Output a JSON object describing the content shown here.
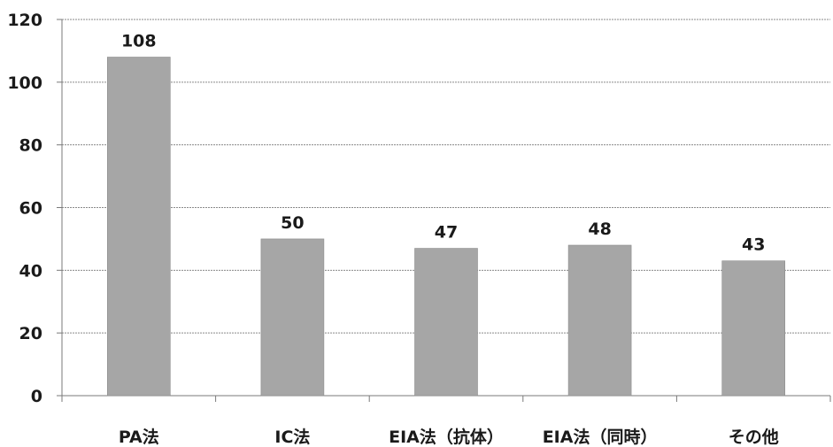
{
  "chart_data": {
    "type": "bar",
    "categories": [
      "PA法",
      "IC法",
      "EIA法（抗体）",
      "EIA法（同時）",
      "その他"
    ],
    "values": [
      108,
      50,
      47,
      48,
      43
    ],
    "data_labels": [
      "108",
      "50",
      "47",
      "48",
      "43"
    ],
    "title": "",
    "xlabel": "",
    "ylabel": "",
    "ylim": [
      0,
      120
    ],
    "yticks": [
      0,
      20,
      40,
      60,
      80,
      100,
      120
    ],
    "grid": true,
    "legend": "none",
    "colors": {
      "bar": "#a6a6a6",
      "bar_edge": "#8c8c8c",
      "grid": "#8a8a8a",
      "axis": "#7a7a7a"
    }
  }
}
